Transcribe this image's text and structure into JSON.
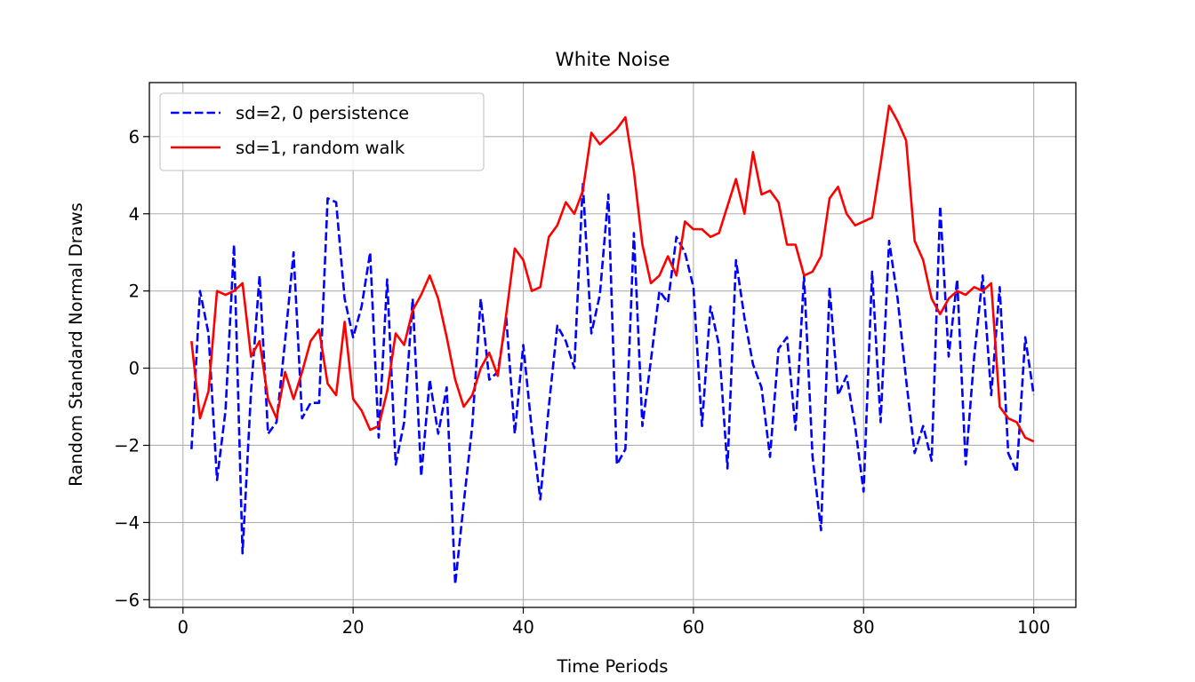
{
  "chart_data": {
    "type": "line",
    "title": "White Noise",
    "xlabel": "Time Periods",
    "ylabel": "Random Standard Normal Draws",
    "xlim": [
      -3.95,
      104.95
    ],
    "ylim": [
      -6.2,
      7.4
    ],
    "xticks": [
      0,
      20,
      40,
      60,
      80,
      100
    ],
    "yticks": [
      -6,
      -4,
      -2,
      0,
      2,
      4,
      6
    ],
    "grid": true,
    "legend_position": "upper-left",
    "x": [
      1,
      2,
      3,
      4,
      5,
      6,
      7,
      8,
      9,
      10,
      11,
      12,
      13,
      14,
      15,
      16,
      17,
      18,
      19,
      20,
      21,
      22,
      23,
      24,
      25,
      26,
      27,
      28,
      29,
      30,
      31,
      32,
      33,
      34,
      35,
      36,
      37,
      38,
      39,
      40,
      41,
      42,
      43,
      44,
      45,
      46,
      47,
      48,
      49,
      50,
      51,
      52,
      53,
      54,
      55,
      56,
      57,
      58,
      59,
      60,
      61,
      62,
      63,
      64,
      65,
      66,
      67,
      68,
      69,
      70,
      71,
      72,
      73,
      74,
      75,
      76,
      77,
      78,
      79,
      80,
      81,
      82,
      83,
      84,
      85,
      86,
      87,
      88,
      89,
      90,
      91,
      92,
      93,
      94,
      95,
      96,
      97,
      98,
      99,
      100
    ],
    "series": [
      {
        "name": "sd=2, 0 persistence",
        "color": "#0000ff",
        "dash": "dashed",
        "values": [
          -2.1,
          2.0,
          0.9,
          -2.9,
          -1.1,
          3.2,
          -4.8,
          -0.6,
          2.4,
          -1.7,
          -1.4,
          0.7,
          3.0,
          -1.3,
          -0.9,
          -0.9,
          4.4,
          4.3,
          1.8,
          0.8,
          1.6,
          3.0,
          -1.8,
          2.3,
          -2.5,
          -1.4,
          1.8,
          -2.8,
          -0.3,
          -1.7,
          -0.5,
          -5.6,
          -3.5,
          -1.5,
          1.8,
          -0.3,
          -0.1,
          1.3,
          -1.7,
          0.6,
          -1.6,
          -3.4,
          -1.0,
          1.1,
          0.7,
          0.0,
          4.8,
          0.9,
          1.9,
          4.5,
          -2.5,
          -2.1,
          3.5,
          -1.5,
          0.2,
          2.0,
          1.7,
          3.4,
          3.0,
          2.1,
          -1.5,
          1.6,
          0.6,
          -2.6,
          2.8,
          1.3,
          0.1,
          -0.5,
          -2.3,
          0.5,
          0.8,
          -1.6,
          2.4,
          -2.3,
          -4.2,
          2.1,
          -0.7,
          -0.2,
          -1.5,
          -3.2,
          2.5,
          -1.4,
          3.3,
          1.8,
          -0.3,
          -2.2,
          -1.5,
          -2.4,
          4.2,
          0.3,
          2.3,
          -2.5,
          0.3,
          2.4,
          -0.7,
          2.1,
          -2.2,
          -2.7,
          0.8,
          -0.7
        ]
      },
      {
        "name": "sd=1, random walk",
        "color": "#ff0000",
        "dash": "solid",
        "values": [
          0.7,
          -1.3,
          -0.6,
          2.0,
          1.9,
          2.0,
          2.2,
          0.3,
          0.7,
          -0.8,
          -1.3,
          -0.1,
          -0.8,
          -0.1,
          0.7,
          1.0,
          -0.4,
          -0.7,
          1.2,
          -0.8,
          -1.1,
          -1.6,
          -1.5,
          -0.6,
          0.9,
          0.6,
          1.5,
          1.9,
          2.4,
          1.8,
          0.8,
          -0.3,
          -1.0,
          -0.7,
          0.0,
          0.4,
          -0.2,
          1.4,
          3.1,
          2.8,
          2.0,
          2.1,
          3.4,
          3.7,
          4.3,
          4.0,
          4.6,
          6.1,
          5.8,
          6.0,
          6.2,
          6.5,
          5.1,
          3.2,
          2.2,
          2.4,
          2.9,
          2.4,
          3.8,
          3.6,
          3.6,
          3.4,
          3.5,
          4.2,
          4.9,
          4.0,
          5.6,
          4.5,
          4.6,
          4.3,
          3.2,
          3.2,
          2.4,
          2.5,
          2.9,
          4.4,
          4.7,
          4.0,
          3.7,
          3.8,
          3.9,
          5.3,
          6.8,
          6.4,
          5.9,
          3.3,
          2.8,
          1.8,
          1.4,
          1.8,
          2.0,
          1.9,
          2.1,
          2.0,
          2.2,
          -1.0,
          -1.3,
          -1.4,
          -1.8,
          -1.9
        ]
      }
    ]
  }
}
